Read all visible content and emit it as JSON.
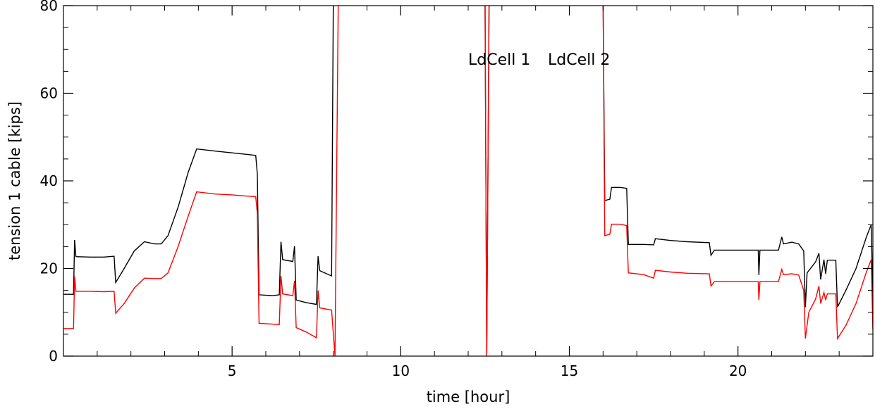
{
  "chart_data": {
    "type": "line",
    "title": "",
    "xlabel": "time [hour]",
    "ylabel": "tension 1 cable [kips]",
    "xlim": [
      0,
      24
    ],
    "ylim": [
      0,
      80
    ],
    "x_ticks": [
      5,
      10,
      15,
      20
    ],
    "x_tick_labels": [
      "5",
      "10",
      "15",
      "20"
    ],
    "y_ticks": [
      0,
      20,
      40,
      60,
      80
    ],
    "y_tick_labels": [
      "0",
      "20",
      "40",
      "60",
      "80"
    ],
    "grid": false,
    "legend": {
      "placement": "top-center"
    },
    "series": [
      {
        "name": "LdCell 1",
        "color": "#000000",
        "points": [
          [
            0.0,
            14.1
          ],
          [
            0.3,
            14.1
          ],
          [
            0.33,
            26.5
          ],
          [
            0.37,
            22.7
          ],
          [
            0.8,
            22.6
          ],
          [
            1.2,
            22.6
          ],
          [
            1.5,
            22.8
          ],
          [
            1.55,
            16.8
          ],
          [
            1.8,
            20
          ],
          [
            2.1,
            24
          ],
          [
            2.4,
            26.1
          ],
          [
            2.7,
            25.6
          ],
          [
            2.9,
            25.6
          ],
          [
            3.1,
            27.5
          ],
          [
            3.4,
            34
          ],
          [
            3.7,
            42
          ],
          [
            3.95,
            47.3
          ],
          [
            4.5,
            46.8
          ],
          [
            5.0,
            46.4
          ],
          [
            5.5,
            46.0
          ],
          [
            5.7,
            45.8
          ],
          [
            5.75,
            41.5
          ],
          [
            5.8,
            14.0
          ],
          [
            6.2,
            13.8
          ],
          [
            6.4,
            14.0
          ],
          [
            6.45,
            26.1
          ],
          [
            6.5,
            22.0
          ],
          [
            6.8,
            21.6
          ],
          [
            6.85,
            25.1
          ],
          [
            6.9,
            12.8
          ],
          [
            7.2,
            12.2
          ],
          [
            7.5,
            11.8
          ],
          [
            7.55,
            22.8
          ],
          [
            7.6,
            19.5
          ],
          [
            7.95,
            18.3
          ],
          [
            8.0,
            80
          ],
          [
            8.1,
            82
          ],
          [
            12.5,
            82
          ],
          [
            12.55,
            0
          ],
          [
            12.62,
            82
          ],
          [
            16.0,
            82
          ],
          [
            16.05,
            35.5
          ],
          [
            16.2,
            35.8
          ],
          [
            16.25,
            38.5
          ],
          [
            16.5,
            38.5
          ],
          [
            16.7,
            38.3
          ],
          [
            16.75,
            25.5
          ],
          [
            17.2,
            25.5
          ],
          [
            17.5,
            25.4
          ],
          [
            17.55,
            26.8
          ],
          [
            18.0,
            26.4
          ],
          [
            18.5,
            26.1
          ],
          [
            19.15,
            25.9
          ],
          [
            19.2,
            23
          ],
          [
            19.3,
            24.2
          ],
          [
            20.0,
            24.2
          ],
          [
            20.6,
            24.2
          ],
          [
            20.62,
            18.5
          ],
          [
            20.65,
            24.2
          ],
          [
            21.2,
            24.2
          ],
          [
            21.3,
            27.2
          ],
          [
            21.35,
            25.6
          ],
          [
            21.6,
            26
          ],
          [
            21.8,
            25.6
          ],
          [
            21.95,
            24
          ],
          [
            22.0,
            11.2
          ],
          [
            22.05,
            19
          ],
          [
            22.3,
            21.5
          ],
          [
            22.4,
            23.5
          ],
          [
            22.45,
            17.5
          ],
          [
            22.55,
            22
          ],
          [
            22.6,
            18.8
          ],
          [
            22.65,
            21.9
          ],
          [
            22.9,
            21.9
          ],
          [
            22.95,
            11.2
          ],
          [
            23.2,
            15
          ],
          [
            23.5,
            20
          ],
          [
            23.8,
            27
          ],
          [
            23.95,
            30
          ],
          [
            24.0,
            13
          ]
        ]
      },
      {
        "name": "LdCell 2",
        "color": "#ff0000",
        "points": [
          [
            0.0,
            6.3
          ],
          [
            0.3,
            6.3
          ],
          [
            0.33,
            18.2
          ],
          [
            0.37,
            14.8
          ],
          [
            0.8,
            14.8
          ],
          [
            1.2,
            14.7
          ],
          [
            1.5,
            14.8
          ],
          [
            1.55,
            9.8
          ],
          [
            1.8,
            12
          ],
          [
            2.1,
            15.5
          ],
          [
            2.4,
            17.8
          ],
          [
            2.7,
            17.7
          ],
          [
            2.9,
            17.7
          ],
          [
            3.1,
            19
          ],
          [
            3.4,
            25
          ],
          [
            3.7,
            32
          ],
          [
            3.95,
            37.5
          ],
          [
            4.5,
            37
          ],
          [
            5.0,
            36.8
          ],
          [
            5.5,
            36.5
          ],
          [
            5.7,
            36.4
          ],
          [
            5.75,
            32.5
          ],
          [
            5.8,
            7.5
          ],
          [
            6.2,
            7.3
          ],
          [
            6.4,
            7.2
          ],
          [
            6.45,
            18.3
          ],
          [
            6.5,
            14.2
          ],
          [
            6.8,
            13.8
          ],
          [
            6.85,
            17.2
          ],
          [
            6.9,
            6.5
          ],
          [
            7.2,
            5.5
          ],
          [
            7.5,
            4.2
          ],
          [
            7.55,
            15
          ],
          [
            7.6,
            11
          ],
          [
            7.95,
            10.5
          ],
          [
            8.05,
            0
          ],
          [
            8.15,
            82
          ],
          [
            12.5,
            82
          ],
          [
            12.55,
            0
          ],
          [
            12.62,
            82
          ],
          [
            16.0,
            82
          ],
          [
            16.05,
            27.5
          ],
          [
            16.2,
            27.8
          ],
          [
            16.25,
            30.1
          ],
          [
            16.5,
            30.1
          ],
          [
            16.7,
            29.8
          ],
          [
            16.75,
            19
          ],
          [
            17.2,
            18.6
          ],
          [
            17.5,
            17.8
          ],
          [
            17.55,
            19.6
          ],
          [
            18.0,
            19.2
          ],
          [
            18.5,
            18.9
          ],
          [
            19.15,
            18.8
          ],
          [
            19.2,
            16
          ],
          [
            19.3,
            17
          ],
          [
            20.0,
            17
          ],
          [
            20.6,
            17
          ],
          [
            20.62,
            12.8
          ],
          [
            20.65,
            17
          ],
          [
            21.2,
            17
          ],
          [
            21.3,
            19.8
          ],
          [
            21.35,
            18.6
          ],
          [
            21.6,
            18.8
          ],
          [
            21.8,
            18.5
          ],
          [
            21.95,
            15
          ],
          [
            22.0,
            4
          ],
          [
            22.1,
            10
          ],
          [
            22.3,
            13
          ],
          [
            22.4,
            16
          ],
          [
            22.45,
            12
          ],
          [
            22.55,
            14.5
          ],
          [
            22.6,
            12.8
          ],
          [
            22.65,
            14.2
          ],
          [
            22.9,
            14.2
          ],
          [
            22.95,
            4
          ],
          [
            23.2,
            7
          ],
          [
            23.5,
            12
          ],
          [
            23.8,
            19
          ],
          [
            23.95,
            22
          ],
          [
            24.0,
            6
          ]
        ]
      }
    ]
  }
}
